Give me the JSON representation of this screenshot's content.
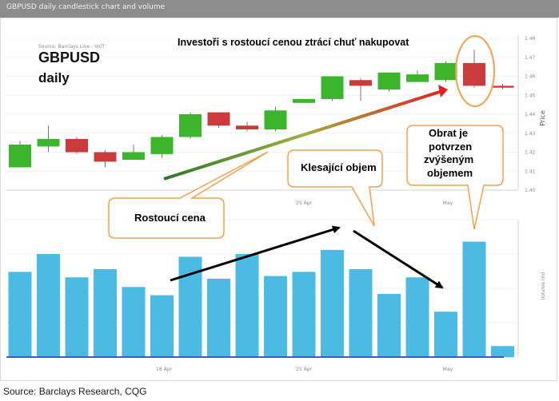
{
  "header": {
    "title": "GBPUSD daily candlestick chart and volume"
  },
  "footer": {
    "source": "Source: Barclays Research, CQG"
  },
  "colors": {
    "bull": "#3ab52c",
    "bear": "#cc3b3b",
    "volume": "#4bbbe4",
    "bubble_border": "#f0a050",
    "trend_up_start": "#2a7a2a",
    "trend_up_end": "#e02020"
  },
  "chart_data": {
    "type": "candlestick",
    "title": "Investoři s rostoucí cenou ztrácí chuť nakupovat",
    "watermark": "Source: Barclays Live - VoIT",
    "instrument": "GBPUSD",
    "timeframe": "daily",
    "price_axis": {
      "label": "Price",
      "ticks": [
        "1.48",
        "1.47",
        "1.46",
        "1.45",
        "1.44",
        "1.43",
        "1.42",
        "1.41",
        "1.40"
      ],
      "ylim": [
        1.4,
        1.48
      ],
      "position": "right"
    },
    "volume_axis": {
      "label": "Volume (m)"
    },
    "x_tick_labels": [
      "18 Apr",
      "25 Apr",
      "May"
    ],
    "candles": [
      {
        "open": 1.412,
        "close": 1.424,
        "high": 1.426,
        "low": 1.412
      },
      {
        "open": 1.423,
        "close": 1.427,
        "high": 1.434,
        "low": 1.42
      },
      {
        "open": 1.427,
        "close": 1.42,
        "high": 1.428,
        "low": 1.419
      },
      {
        "open": 1.42,
        "close": 1.415,
        "high": 1.421,
        "low": 1.412
      },
      {
        "open": 1.416,
        "close": 1.42,
        "high": 1.424,
        "low": 1.416
      },
      {
        "open": 1.419,
        "close": 1.428,
        "high": 1.429,
        "low": 1.417
      },
      {
        "open": 1.428,
        "close": 1.44,
        "high": 1.441,
        "low": 1.427
      },
      {
        "open": 1.441,
        "close": 1.434,
        "high": 1.441,
        "low": 1.433
      },
      {
        "open": 1.434,
        "close": 1.432,
        "high": 1.436,
        "low": 1.431
      },
      {
        "open": 1.432,
        "close": 1.442,
        "high": 1.444,
        "low": 1.431
      },
      {
        "open": 1.446,
        "close": 1.448,
        "high": 1.448,
        "low": 1.446
      },
      {
        "open": 1.448,
        "close": 1.46,
        "high": 1.46,
        "low": 1.447
      },
      {
        "open": 1.458,
        "close": 1.455,
        "high": 1.459,
        "low": 1.447
      },
      {
        "open": 1.453,
        "close": 1.462,
        "high": 1.462,
        "low": 1.452
      },
      {
        "open": 1.457,
        "close": 1.461,
        "high": 1.463,
        "low": 1.457
      },
      {
        "open": 1.458,
        "close": 1.467,
        "high": 1.468,
        "low": 1.457
      },
      {
        "open": 1.467,
        "close": 1.455,
        "high": 1.474,
        "low": 1.454
      },
      {
        "open": 1.455,
        "close": 1.454,
        "high": 1.456,
        "low": 1.453
      }
    ],
    "volume": [
      62,
      75,
      58,
      64,
      51,
      45,
      73,
      57,
      75,
      59,
      62,
      78,
      64,
      46,
      58,
      33,
      84,
      8
    ],
    "annotations": [
      {
        "text": "Rostoucí cena"
      },
      {
        "text": "Klesající objem"
      },
      {
        "lines": [
          "Obrat je",
          "potvrzen",
          "zvýšeným",
          "objemem"
        ]
      }
    ]
  }
}
